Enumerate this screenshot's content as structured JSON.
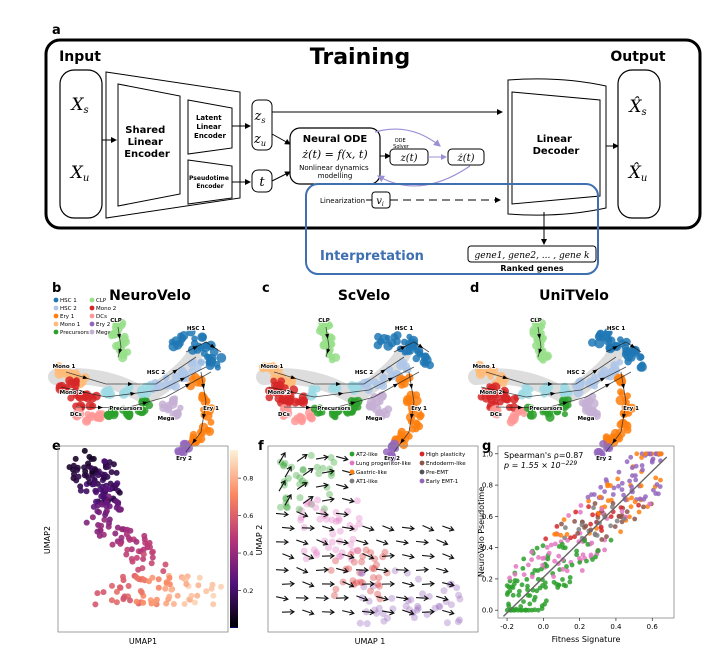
{
  "panel_a": {
    "letter": "a",
    "training": "Training",
    "input": "Input",
    "output": "Output",
    "xs": "X",
    "xs_sub": "s",
    "xu": "X",
    "xu_sub": "u",
    "shared_encoder": [
      "Shared",
      "Linear",
      "Encoder"
    ],
    "latent_encoder": [
      "Latent",
      "Linear",
      "Encoder"
    ],
    "pseudotime_encoder": [
      "Pseudotime",
      "Encoder"
    ],
    "zs": "z",
    "zs_sub": "s",
    "zu": "z",
    "zu_sub": "u",
    "t": "t",
    "neural_ode": "Neural ODE",
    "ode_eq": "ż(t) = f(x, t)",
    "ode_desc": [
      "Nonlinear dynamics",
      "modelling"
    ],
    "ode_solver": [
      "ODE",
      "Solver"
    ],
    "zs_t": "z(t)",
    "zsdot_t": "ż(t)",
    "linearization": "Linearization",
    "vi": "v",
    "vi_sub": "i",
    "linear_decoder": [
      "Linear",
      "Decoder"
    ],
    "xs_hat": "X̂",
    "xu_hat": "X̂",
    "interpretation": "Interpretation",
    "genes": "gene1, gene2, ... , gene k",
    "ranked_genes": "Ranked genes"
  },
  "panel_b": {
    "letter": "b",
    "title": "NeuroVelo"
  },
  "panel_c": {
    "letter": "c",
    "title": "ScVelo"
  },
  "panel_d": {
    "letter": "d",
    "title": "UniTVelo"
  },
  "umap_legend": [
    {
      "label": "HSC 1",
      "color": "#1f77b4"
    },
    {
      "label": "HSC 2",
      "color": "#aec7e8"
    },
    {
      "label": "Ery 1",
      "color": "#ff7f0e"
    },
    {
      "label": "Mono 1",
      "color": "#ffbb78"
    },
    {
      "label": "Precursors",
      "color": "#2ca02c"
    },
    {
      "label": "CLP",
      "color": "#98df8a"
    },
    {
      "label": "Mono 2",
      "color": "#d62728"
    },
    {
      "label": "DCs",
      "color": "#ff9896"
    },
    {
      "label": "Ery 2",
      "color": "#9467bd"
    },
    {
      "label": "Mega",
      "color": "#c5b0d5"
    }
  ],
  "cluster_labels": [
    "CLP",
    "HSC 1",
    "Mono 1",
    "HSC 2",
    "Mono 2",
    "DCs",
    "Precursors",
    "Mega",
    "Ery 1",
    "Ery 2"
  ],
  "panel_e": {
    "letter": "e",
    "xlabel": "UMAP1",
    "ylabel": "UMAP2",
    "colorbar_ticks": [
      "0.8",
      "0.6",
      "0.4",
      "0.2"
    ]
  },
  "panel_f": {
    "letter": "f",
    "xlabel": "UMAP 1",
    "ylabel": "UMAP 2",
    "legend": [
      {
        "label": "AT2-like",
        "color": "#2ca02c"
      },
      {
        "label": "Lung progenitor-like",
        "color": "#e377c2"
      },
      {
        "label": "Gastric-like",
        "color": "#ff7f0e"
      },
      {
        "label": "AT1-like",
        "color": "#7f7f7f"
      },
      {
        "label": "High plasticity",
        "color": "#d62728"
      },
      {
        "label": "Endoderm-like",
        "color": "#8c564b"
      },
      {
        "label": "Pre-EMT",
        "color": "#555555"
      },
      {
        "label": "Early EMT-1",
        "color": "#9467bd"
      }
    ]
  },
  "chart_data": {
    "type": "scatter",
    "panel": "g",
    "xlabel": "Fitness Signature",
    "ylabel": "NeuroVelo Pseudotime",
    "xlim": [
      -0.25,
      0.72
    ],
    "ylim": [
      -0.05,
      1.05
    ],
    "xticks": [
      "-0.2",
      "0.0",
      "0.2",
      "0.4",
      "0.6"
    ],
    "yticks": [
      "0.0",
      "0.2",
      "0.4",
      "0.6",
      "0.8",
      "1.0"
    ],
    "annotation_line1": "Spearman's ρ=0.87",
    "annotation_line2": "p = 1.55 × 10",
    "annotation_exp": "−229",
    "fit_line": {
      "x": [
        -0.22,
        0.68
      ],
      "y": [
        -0.04,
        0.98
      ]
    }
  }
}
